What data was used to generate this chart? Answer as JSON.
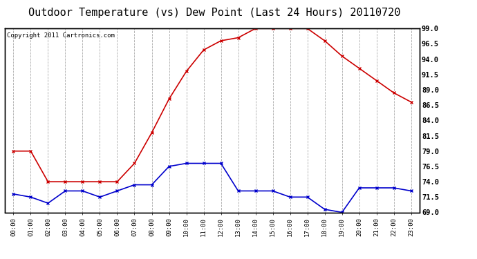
{
  "title": "Outdoor Temperature (vs) Dew Point (Last 24 Hours) 20110720",
  "copyright_text": "Copyright 2011 Cartronics.com",
  "x_labels": [
    "00:00",
    "01:00",
    "02:00",
    "03:00",
    "04:00",
    "05:00",
    "06:00",
    "07:00",
    "08:00",
    "09:00",
    "10:00",
    "11:00",
    "12:00",
    "13:00",
    "14:00",
    "15:00",
    "16:00",
    "17:00",
    "18:00",
    "19:00",
    "20:00",
    "21:00",
    "22:00",
    "23:00"
  ],
  "temp_values": [
    79.0,
    79.0,
    74.0,
    74.0,
    74.0,
    74.0,
    74.0,
    77.0,
    82.0,
    87.5,
    92.0,
    95.5,
    97.0,
    97.5,
    99.0,
    99.0,
    99.0,
    99.0,
    97.0,
    94.5,
    92.5,
    90.5,
    88.5,
    87.0
  ],
  "dew_values": [
    72.0,
    71.5,
    70.5,
    72.5,
    72.5,
    71.5,
    72.5,
    73.5,
    73.5,
    76.5,
    77.0,
    77.0,
    77.0,
    72.5,
    72.5,
    72.5,
    71.5,
    71.5,
    69.5,
    69.0,
    73.0,
    73.0,
    73.0,
    72.5
  ],
  "temp_color": "#cc0000",
  "dew_color": "#0000cc",
  "ylim_min": 69.0,
  "ylim_max": 99.0,
  "yticks": [
    69.0,
    71.5,
    74.0,
    76.5,
    79.0,
    81.5,
    84.0,
    86.5,
    89.0,
    91.5,
    94.0,
    96.5,
    99.0
  ],
  "background_color": "#ffffff",
  "plot_bg_color": "#ffffff",
  "grid_color": "#aaaaaa",
  "title_fontsize": 11,
  "copyright_fontsize": 6.5,
  "tick_fontsize": 7.5,
  "xtick_fontsize": 6.5
}
